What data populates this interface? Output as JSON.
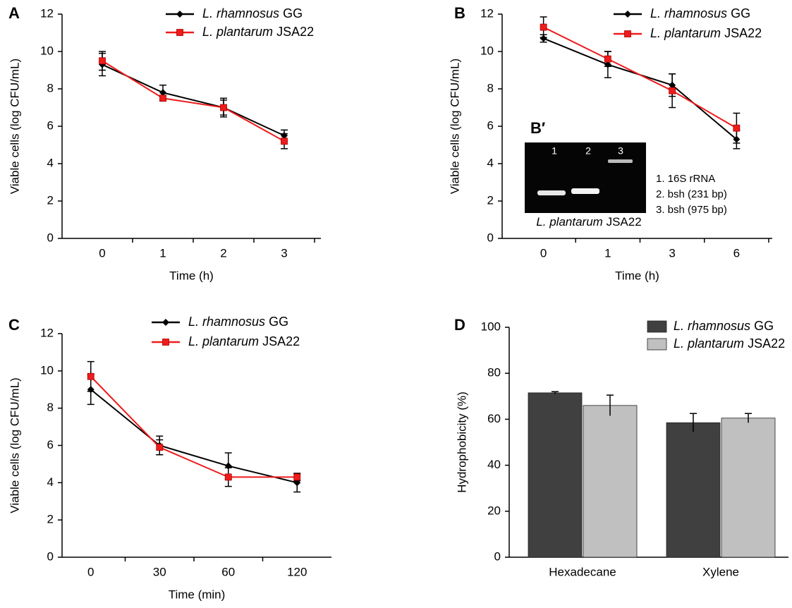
{
  "chart_data": [
    {
      "type": "line",
      "panel_label": "A",
      "xlabel": "Time (h)",
      "ylabel": "Viable cells (log CFU/mL)",
      "categories": [
        "0",
        "1",
        "2",
        "3"
      ],
      "ylim": [
        0,
        12
      ],
      "yticks": [
        0,
        2,
        4,
        6,
        8,
        10,
        12
      ],
      "legend": "top",
      "series": [
        {
          "name": "L. rhamnosus GG",
          "color": "#000000",
          "marker": "diamond",
          "values": [
            9.3,
            7.8,
            7.0,
            5.5
          ],
          "errors": [
            0.6,
            0.4,
            0.5,
            0.3
          ]
        },
        {
          "name": "L. plantarum JSA22",
          "color": "#ee1c1c",
          "marker": "square",
          "values": [
            9.5,
            7.5,
            7.0,
            5.2
          ],
          "errors": [
            0.5,
            0.15,
            0.4,
            0.4
          ]
        }
      ]
    },
    {
      "type": "line",
      "panel_label": "B",
      "xlabel": "Time (h)",
      "ylabel": "Viable cells (log CFU/mL)",
      "categories": [
        "0",
        "1",
        "3",
        "6"
      ],
      "ylim": [
        0,
        12
      ],
      "yticks": [
        0,
        2,
        4,
        6,
        8,
        10,
        12
      ],
      "legend": "top",
      "series": [
        {
          "name": "L. rhamnosus GG",
          "color": "#000000",
          "marker": "diamond",
          "values": [
            10.7,
            9.3,
            8.2,
            5.3
          ],
          "errors": [
            0.2,
            0.7,
            0.6,
            0.5
          ]
        },
        {
          "name": "L. plantarum JSA22",
          "color": "#ee1c1c",
          "marker": "square",
          "values": [
            11.3,
            9.6,
            7.9,
            5.9
          ],
          "errors": [
            0.55,
            0.4,
            0.9,
            0.8
          ]
        }
      ],
      "inset": {
        "label": "B′",
        "lanes": [
          "1",
          "2",
          "3"
        ],
        "key": [
          "1. 16S rRNA",
          "2. bsh (231 bp)",
          "3. bsh (975 bp)"
        ],
        "caption": "L. plantarum JSA22"
      }
    },
    {
      "type": "line",
      "panel_label": "C",
      "xlabel": "Time (min)",
      "ylabel": "Viable cells (log CFU/mL)",
      "categories": [
        "0",
        "30",
        "60",
        "120"
      ],
      "ylim": [
        0,
        12
      ],
      "yticks": [
        0,
        2,
        4,
        6,
        8,
        10,
        12
      ],
      "legend": "top",
      "series": [
        {
          "name": "L. rhamnosus GG",
          "color": "#000000",
          "marker": "diamond",
          "values": [
            9.0,
            6.0,
            4.9,
            4.0
          ],
          "errors": [
            0.8,
            0.5,
            0.7,
            0.5
          ]
        },
        {
          "name": "L. plantarum JSA22",
          "color": "#ee1c1c",
          "marker": "square",
          "values": [
            9.7,
            5.9,
            4.3,
            4.3
          ],
          "errors": [
            0.8,
            0.4,
            0.5,
            0.2
          ]
        }
      ]
    },
    {
      "type": "bar",
      "panel_label": "D",
      "ylabel": "Hydrophobicity (%)",
      "categories": [
        "Hexadecane",
        "Xylene"
      ],
      "ylim": [
        0,
        100
      ],
      "yticks": [
        0,
        20,
        40,
        60,
        80,
        100
      ],
      "legend": "top-right",
      "series": [
        {
          "name": "L. rhamnosus GG",
          "color": "#404040",
          "values": [
            71.5,
            58.5
          ],
          "errors": [
            0.5,
            4.0
          ]
        },
        {
          "name": "L. plantarum JSA22",
          "color": "#c0c0c0",
          "values": [
            66.0,
            60.5
          ],
          "errors": [
            4.5,
            2.0
          ]
        }
      ]
    }
  ]
}
